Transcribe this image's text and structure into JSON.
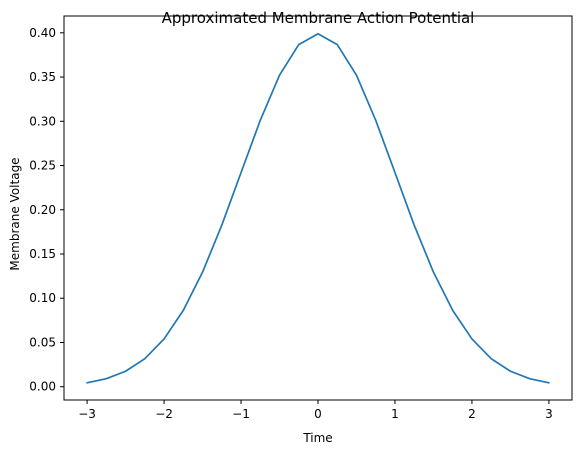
{
  "chart_data": {
    "type": "line",
    "title": "Approximated Membrane Action Potential",
    "xlabel": "Time",
    "ylabel": "Membrane Voltage",
    "xlim": [
      -3.3,
      3.3
    ],
    "ylim": [
      -0.015,
      0.419
    ],
    "x_ticks": [
      -3,
      -2,
      -1,
      0,
      1,
      2,
      3
    ],
    "x_tick_labels": [
      "−3",
      "−2",
      "−1",
      "0",
      "1",
      "2",
      "3"
    ],
    "y_ticks": [
      0.0,
      0.05,
      0.1,
      0.15,
      0.2,
      0.25,
      0.3,
      0.35,
      0.4
    ],
    "y_tick_labels": [
      "0.00",
      "0.05",
      "0.10",
      "0.15",
      "0.20",
      "0.25",
      "0.30",
      "0.35",
      "0.40"
    ],
    "grid": false,
    "series": [
      {
        "color": "#1f77b4",
        "x": [
          -3.0,
          -2.75,
          -2.5,
          -2.25,
          -2.0,
          -1.75,
          -1.5,
          -1.25,
          -1.0,
          -0.75,
          -0.5,
          -0.25,
          0.0,
          0.25,
          0.5,
          0.75,
          1.0,
          1.25,
          1.5,
          1.75,
          2.0,
          2.25,
          2.5,
          2.75,
          3.0
        ],
        "y": [
          0.0044,
          0.0091,
          0.0175,
          0.0317,
          0.054,
          0.0863,
          0.1295,
          0.1826,
          0.242,
          0.3011,
          0.3521,
          0.3867,
          0.3989,
          0.3867,
          0.3521,
          0.3011,
          0.242,
          0.1826,
          0.1295,
          0.0863,
          0.054,
          0.0317,
          0.0175,
          0.0091,
          0.0044
        ]
      }
    ]
  }
}
